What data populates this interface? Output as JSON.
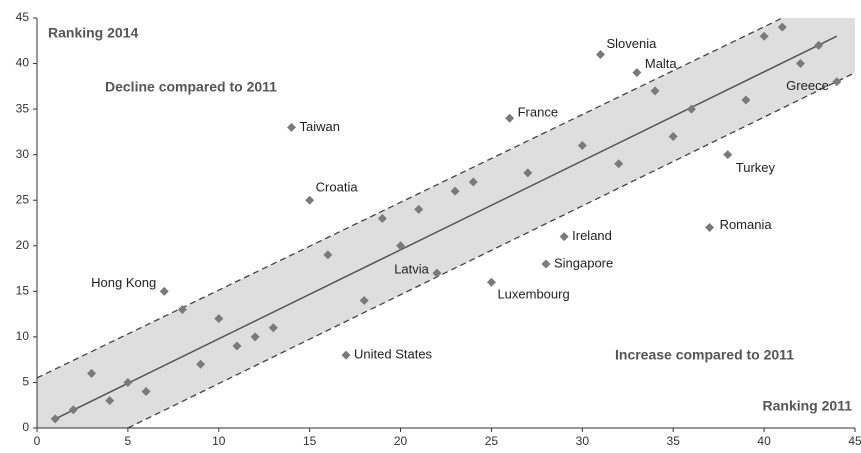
{
  "chart_data": {
    "type": "scatter",
    "y_label": "Ranking 2014",
    "x_label": "Ranking 2011",
    "annotations": [
      "Decline compared to 2011",
      "Increase compared to 2011"
    ],
    "xlim": [
      0,
      45
    ],
    "ylim": [
      0,
      45
    ],
    "xticks": [
      0,
      5,
      10,
      15,
      20,
      25,
      30,
      35,
      40,
      45
    ],
    "yticks": [
      0,
      5,
      10,
      15,
      20,
      25,
      30,
      35,
      40,
      45
    ],
    "color": "#7a7a7a",
    "band_color": "#dedede",
    "lines": [
      {
        "style": "solid",
        "x": [
          1,
          44
        ],
        "y": [
          1,
          43
        ]
      },
      {
        "style": "dashed",
        "x": [
          0,
          41
        ],
        "y": [
          5.5,
          45
        ]
      },
      {
        "style": "dashed",
        "x": [
          5,
          45
        ],
        "y": [
          0,
          39
        ]
      }
    ],
    "x": [
      1,
      2,
      3,
      4,
      5,
      6,
      7,
      8,
      9,
      10,
      11,
      12,
      13,
      14,
      15,
      16,
      17,
      18,
      19,
      20,
      21,
      22,
      23,
      24,
      25,
      26,
      27,
      28,
      29,
      30,
      31,
      32,
      33,
      34,
      35,
      36,
      37,
      38,
      39,
      40,
      41,
      42,
      43,
      44
    ],
    "y": [
      1,
      2,
      6,
      3,
      5,
      4,
      15,
      13,
      7,
      12,
      9,
      10,
      11,
      33,
      25,
      19,
      8,
      14,
      23,
      20,
      24,
      17,
      26,
      27,
      16,
      34,
      28,
      18,
      21,
      31,
      41,
      29,
      39,
      37,
      32,
      35,
      22,
      30,
      36,
      43,
      44,
      40,
      42,
      38
    ],
    "labels": [
      null,
      null,
      null,
      null,
      null,
      null,
      "Hong Kong",
      null,
      null,
      null,
      null,
      null,
      null,
      "Taiwan",
      "Croatia",
      null,
      "United States",
      null,
      null,
      null,
      null,
      "Latvia",
      null,
      null,
      "Luxembourg",
      "France",
      null,
      "Singapore",
      "Ireland",
      null,
      "Slovenia",
      null,
      "Malta",
      null,
      null,
      null,
      "Romania",
      "Turkey",
      null,
      null,
      null,
      null,
      null,
      "Greece"
    ]
  }
}
